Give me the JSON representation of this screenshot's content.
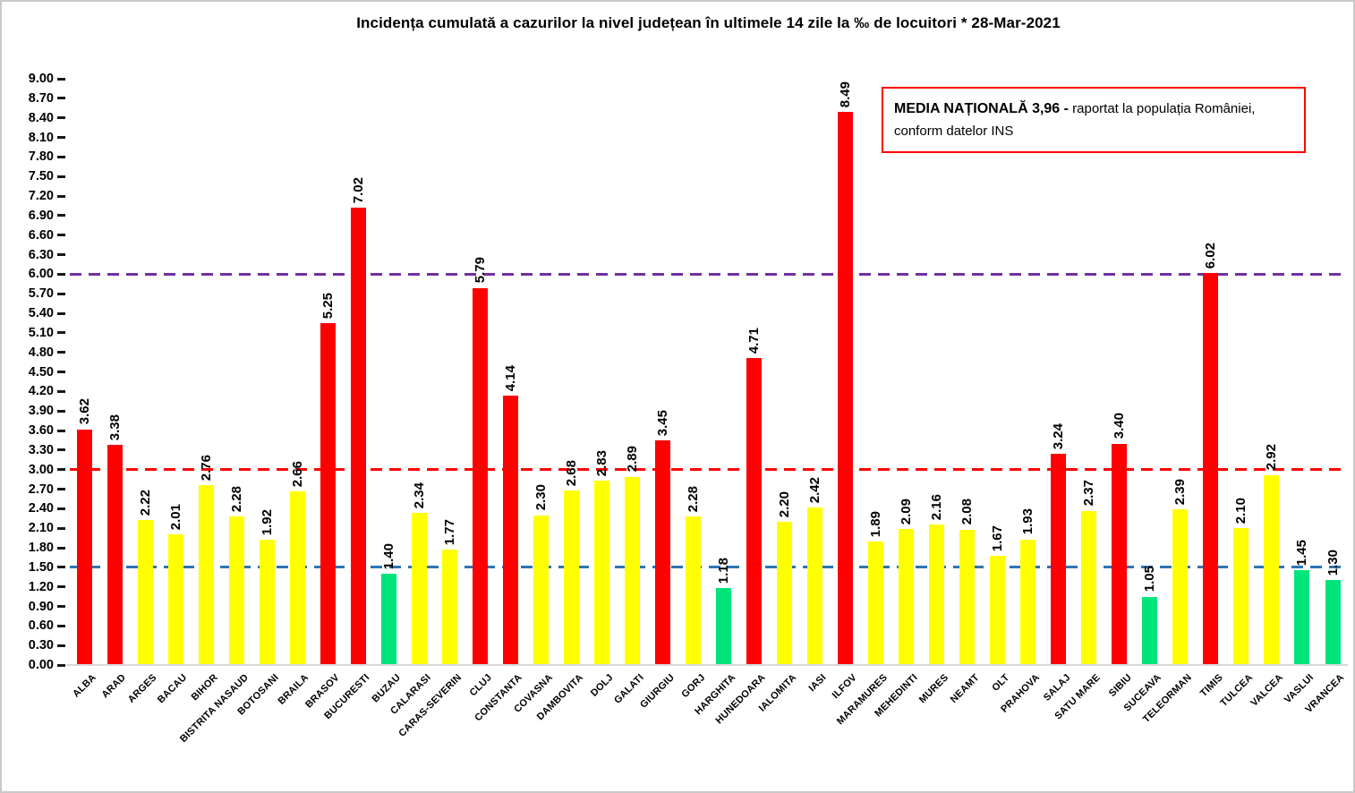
{
  "title": "Incidența cumulată a cazurilor la nivel județean în ultimele 14 zile la ‰ de locuitori * 28-Mar-2021",
  "annotation": {
    "bold": "MEDIA NAȚIONALĂ  3,96 -",
    "regular": " raportat la populația României, conform datelor INS",
    "border_color": "#FF0000"
  },
  "chart_data": {
    "type": "bar",
    "title": "Incidența cumulată a cazurilor la nivel județean în ultimele 14 zile la ‰ de locuitori * 28-Mar-2021",
    "xlabel": "",
    "ylabel": "",
    "ylim": [
      0,
      9
    ],
    "ytick_step": 0.3,
    "ytick_labels": [
      "0.00",
      "0.30",
      "0.60",
      "0.90",
      "1.20",
      "1.50",
      "1.80",
      "2.10",
      "2.40",
      "2.70",
      "3.00",
      "3.30",
      "3.60",
      "3.90",
      "4.20",
      "4.50",
      "4.80",
      "5.10",
      "5.40",
      "5.70",
      "6.00",
      "6.30",
      "6.60",
      "6.90",
      "7.20",
      "7.50",
      "7.80",
      "8.10",
      "8.40",
      "8.70",
      "9.00"
    ],
    "grid": false,
    "categories": [
      "ALBA",
      "ARAD",
      "ARGES",
      "BACAU",
      "BIHOR",
      "BISTRITA NASAUD",
      "BOTOSANI",
      "BRAILA",
      "BRASOV",
      "BUCURESTI",
      "BUZAU",
      "CALARASI",
      "CARAS-SEVERIN",
      "CLUJ",
      "CONSTANTA",
      "COVASNA",
      "DAMBOVITA",
      "DOLJ",
      "GALATI",
      "GIURGIU",
      "GORJ",
      "HARGHITA",
      "HUNEDOARA",
      "IALOMITA",
      "IASI",
      "ILFOV",
      "MARAMURES",
      "MEHEDINTI",
      "MURES",
      "NEAMT",
      "OLT",
      "PRAHOVA",
      "SALAJ",
      "SATU MARE",
      "SIBIU",
      "SUCEAVA",
      "TELEORMAN",
      "TIMIS",
      "TULCEA",
      "VALCEA",
      "VASLUI",
      "VRANCEA"
    ],
    "values": [
      3.62,
      3.38,
      2.22,
      2.01,
      2.76,
      2.28,
      1.92,
      2.66,
      5.25,
      7.02,
      1.4,
      2.34,
      1.77,
      5.79,
      4.14,
      2.3,
      2.68,
      2.83,
      2.89,
      3.45,
      2.28,
      1.18,
      4.71,
      2.2,
      2.42,
      8.49,
      1.89,
      2.09,
      2.16,
      2.08,
      1.67,
      1.93,
      3.24,
      2.37,
      3.4,
      1.05,
      2.39,
      6.02,
      2.1,
      2.92,
      1.45,
      1.3
    ],
    "bar_colors": [
      "red",
      "red",
      "yellow",
      "yellow",
      "yellow",
      "yellow",
      "yellow",
      "yellow",
      "red",
      "red",
      "green",
      "yellow",
      "yellow",
      "red",
      "red",
      "yellow",
      "yellow",
      "yellow",
      "yellow",
      "red",
      "yellow",
      "green",
      "red",
      "yellow",
      "yellow",
      "red",
      "yellow",
      "yellow",
      "yellow",
      "yellow",
      "yellow",
      "yellow",
      "red",
      "yellow",
      "red",
      "green",
      "yellow",
      "red",
      "yellow",
      "yellow",
      "green",
      "green"
    ],
    "palette": {
      "red": "#FF0000",
      "yellow": "#FFFF00",
      "green": "#00E57B"
    },
    "reference_lines": [
      {
        "value": 6.0,
        "color": "#7030A0"
      },
      {
        "value": 3.0,
        "color": "#FF0000"
      },
      {
        "value": 1.5,
        "color": "#2E74B5"
      }
    ],
    "national_average": "3,96"
  }
}
